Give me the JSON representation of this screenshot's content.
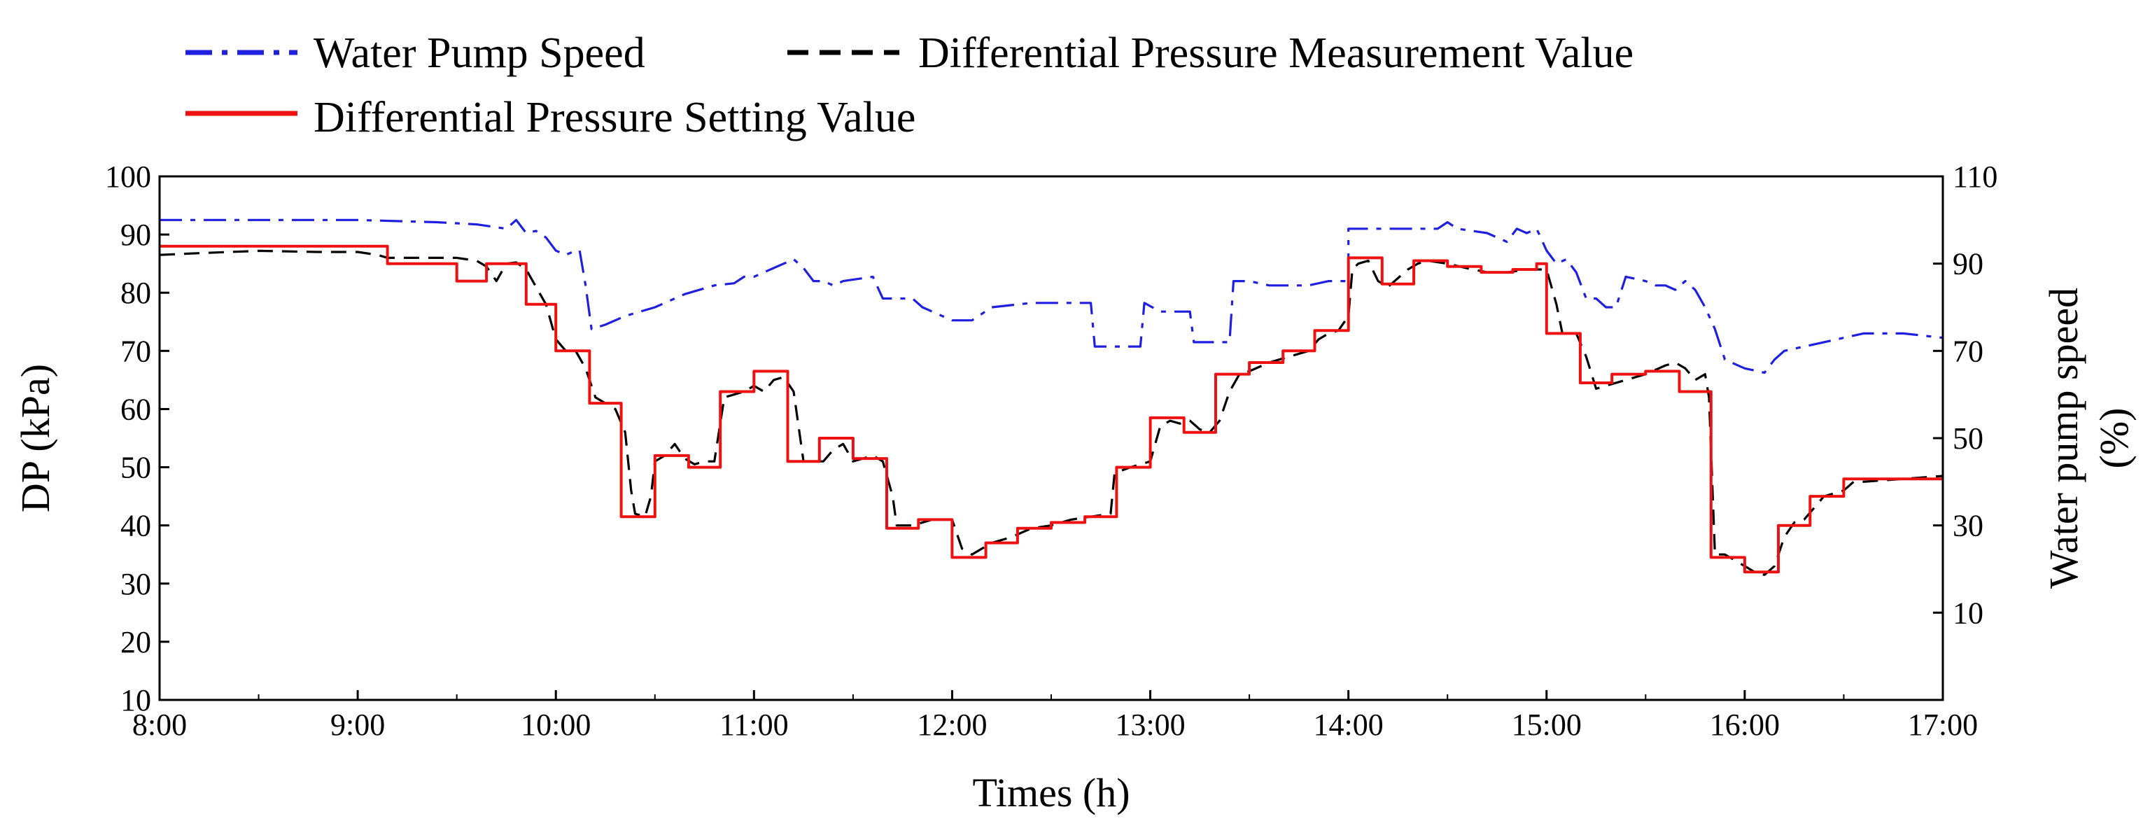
{
  "chart_data": {
    "type": "line",
    "title": "",
    "xlabel": "Times (h)",
    "ylabel": "DP (kPa)",
    "y2label_line1": "Water pump speed",
    "y2label_line2": "(%)",
    "xlim": [
      8,
      17
    ],
    "ylim": [
      10,
      100
    ],
    "y2lim": [
      -10,
      110
    ],
    "x_ticks": [
      {
        "value": 8,
        "label": "8:00"
      },
      {
        "value": 9,
        "label": "9:00"
      },
      {
        "value": 10,
        "label": "10:00"
      },
      {
        "value": 11,
        "label": "11:00"
      },
      {
        "value": 12,
        "label": "12:00"
      },
      {
        "value": 13,
        "label": "13:00"
      },
      {
        "value": 14,
        "label": "14:00"
      },
      {
        "value": 15,
        "label": "15:00"
      },
      {
        "value": 16,
        "label": "16:00"
      },
      {
        "value": 17,
        "label": "17:00"
      }
    ],
    "y_ticks": [
      {
        "value": 10,
        "label": "10"
      },
      {
        "value": 20,
        "label": "20"
      },
      {
        "value": 30,
        "label": "30"
      },
      {
        "value": 40,
        "label": "40"
      },
      {
        "value": 50,
        "label": "50"
      },
      {
        "value": 60,
        "label": "60"
      },
      {
        "value": 70,
        "label": "70"
      },
      {
        "value": 80,
        "label": "80"
      },
      {
        "value": 90,
        "label": "90"
      },
      {
        "value": 100,
        "label": "100"
      }
    ],
    "y2_ticks": [
      {
        "value": 10,
        "label": "10"
      },
      {
        "value": 30,
        "label": "30"
      },
      {
        "value": 50,
        "label": "50"
      },
      {
        "value": 70,
        "label": "70"
      },
      {
        "value": 90,
        "label": "90"
      },
      {
        "value": 110,
        "label": "110"
      }
    ],
    "legend": [
      {
        "name": "Water Pump Speed",
        "color": "#1f1fe0",
        "dash": "dashdot"
      },
      {
        "name": "Differential Pressure Measurement Value",
        "color": "#000000",
        "dash": "dashed"
      },
      {
        "name": "Differential Pressure Setting Value",
        "color": "#ee1111",
        "dash": "solid"
      }
    ],
    "series": [
      {
        "name": "Water Pump Speed",
        "axis": "right",
        "color": "#1f1fe0",
        "step": false,
        "points": [
          [
            8.0,
            100
          ],
          [
            8.5,
            100
          ],
          [
            9.0,
            100
          ],
          [
            9.4,
            99.5
          ],
          [
            9.6,
            99
          ],
          [
            9.75,
            98
          ],
          [
            9.8,
            100
          ],
          [
            9.85,
            97
          ],
          [
            9.9,
            97.5
          ],
          [
            9.95,
            96
          ],
          [
            10.0,
            93
          ],
          [
            10.05,
            92
          ],
          [
            10.1,
            93
          ],
          [
            10.12,
            93
          ],
          [
            10.15,
            85
          ],
          [
            10.18,
            75
          ],
          [
            10.25,
            76
          ],
          [
            10.35,
            78
          ],
          [
            10.5,
            80
          ],
          [
            10.65,
            83
          ],
          [
            10.8,
            85
          ],
          [
            10.9,
            85.5
          ],
          [
            10.95,
            87
          ],
          [
            11.0,
            87
          ],
          [
            11.1,
            89
          ],
          [
            11.2,
            91
          ],
          [
            11.25,
            89
          ],
          [
            11.3,
            86
          ],
          [
            11.35,
            86
          ],
          [
            11.4,
            85
          ],
          [
            11.45,
            86
          ],
          [
            11.6,
            87
          ],
          [
            11.65,
            82
          ],
          [
            11.8,
            82
          ],
          [
            11.85,
            80
          ],
          [
            12.0,
            77
          ],
          [
            12.1,
            77
          ],
          [
            12.2,
            80
          ],
          [
            12.4,
            81
          ],
          [
            12.6,
            81
          ],
          [
            12.7,
            81
          ],
          [
            12.72,
            71
          ],
          [
            12.95,
            71
          ],
          [
            12.97,
            81
          ],
          [
            13.05,
            79
          ],
          [
            13.1,
            79
          ],
          [
            13.2,
            79
          ],
          [
            13.22,
            72
          ],
          [
            13.4,
            72
          ],
          [
            13.42,
            86
          ],
          [
            13.5,
            86
          ],
          [
            13.6,
            85
          ],
          [
            13.8,
            85
          ],
          [
            13.9,
            86
          ],
          [
            14.0,
            86
          ],
          [
            14.0,
            98
          ],
          [
            14.3,
            98
          ],
          [
            14.45,
            98
          ],
          [
            14.5,
            99.5
          ],
          [
            14.55,
            98
          ],
          [
            14.7,
            97
          ],
          [
            14.8,
            95
          ],
          [
            14.85,
            98
          ],
          [
            14.9,
            97
          ],
          [
            14.95,
            98
          ],
          [
            15.0,
            93
          ],
          [
            15.05,
            90
          ],
          [
            15.1,
            91
          ],
          [
            15.15,
            88
          ],
          [
            15.2,
            82
          ],
          [
            15.25,
            82
          ],
          [
            15.3,
            80
          ],
          [
            15.35,
            80
          ],
          [
            15.4,
            87
          ],
          [
            15.5,
            86
          ],
          [
            15.55,
            85
          ],
          [
            15.6,
            85
          ],
          [
            15.65,
            84
          ],
          [
            15.7,
            86
          ],
          [
            15.75,
            84
          ],
          [
            15.8,
            80
          ],
          [
            15.85,
            75
          ],
          [
            15.9,
            68
          ],
          [
            16.0,
            66
          ],
          [
            16.1,
            65
          ],
          [
            16.15,
            68
          ],
          [
            16.2,
            70
          ],
          [
            16.3,
            71
          ],
          [
            16.4,
            72
          ],
          [
            16.5,
            73
          ],
          [
            16.6,
            74
          ],
          [
            16.8,
            74
          ],
          [
            17.0,
            73
          ]
        ]
      },
      {
        "name": "Differential Pressure Measurement Value",
        "axis": "left",
        "color": "#000000",
        "step": false,
        "points": [
          [
            8.0,
            86.5
          ],
          [
            8.2,
            86.8
          ],
          [
            8.5,
            87.2
          ],
          [
            8.8,
            87
          ],
          [
            9.0,
            87
          ],
          [
            9.1,
            86.5
          ],
          [
            9.15,
            86
          ],
          [
            9.3,
            86
          ],
          [
            9.5,
            86
          ],
          [
            9.6,
            85.5
          ],
          [
            9.65,
            84.5
          ],
          [
            9.7,
            82
          ],
          [
            9.75,
            85
          ],
          [
            9.8,
            85.2
          ],
          [
            9.85,
            84
          ],
          [
            9.9,
            81
          ],
          [
            9.95,
            78
          ],
          [
            10.0,
            72
          ],
          [
            10.05,
            70
          ],
          [
            10.1,
            70
          ],
          [
            10.15,
            67
          ],
          [
            10.2,
            62
          ],
          [
            10.25,
            61
          ],
          [
            10.3,
            60
          ],
          [
            10.35,
            56
          ],
          [
            10.38,
            46
          ],
          [
            10.4,
            42
          ],
          [
            10.45,
            41.5
          ],
          [
            10.48,
            45
          ],
          [
            10.5,
            51
          ],
          [
            10.55,
            52
          ],
          [
            10.6,
            54
          ],
          [
            10.65,
            51.5
          ],
          [
            10.7,
            50.5
          ],
          [
            10.75,
            51
          ],
          [
            10.8,
            51
          ],
          [
            10.85,
            62
          ],
          [
            10.95,
            63
          ],
          [
            11.0,
            64
          ],
          [
            11.05,
            63
          ],
          [
            11.1,
            65
          ],
          [
            11.15,
            65.5
          ],
          [
            11.2,
            63
          ],
          [
            11.25,
            51
          ],
          [
            11.35,
            51
          ],
          [
            11.4,
            53
          ],
          [
            11.45,
            54
          ],
          [
            11.5,
            51
          ],
          [
            11.55,
            51.5
          ],
          [
            11.6,
            52
          ],
          [
            11.65,
            51
          ],
          [
            11.7,
            45
          ],
          [
            11.72,
            40
          ],
          [
            11.8,
            40
          ],
          [
            11.9,
            41
          ],
          [
            12.0,
            41
          ],
          [
            12.05,
            36
          ],
          [
            12.1,
            35
          ],
          [
            12.15,
            36
          ],
          [
            12.2,
            37
          ],
          [
            12.3,
            38
          ],
          [
            12.4,
            39.5
          ],
          [
            12.5,
            40
          ],
          [
            12.6,
            41
          ],
          [
            12.7,
            41.5
          ],
          [
            12.8,
            42
          ],
          [
            12.82,
            49
          ],
          [
            12.9,
            50
          ],
          [
            12.95,
            50.5
          ],
          [
            13.0,
            51
          ],
          [
            13.05,
            57
          ],
          [
            13.1,
            58
          ],
          [
            13.15,
            57.5
          ],
          [
            13.2,
            58
          ],
          [
            13.25,
            56.5
          ],
          [
            13.3,
            56
          ],
          [
            13.35,
            58
          ],
          [
            13.4,
            63
          ],
          [
            13.45,
            66
          ],
          [
            13.5,
            66.5
          ],
          [
            13.6,
            68
          ],
          [
            13.7,
            69
          ],
          [
            13.8,
            70
          ],
          [
            13.85,
            72
          ],
          [
            13.9,
            73
          ],
          [
            13.95,
            73.5
          ],
          [
            14.0,
            76
          ],
          [
            14.02,
            84
          ],
          [
            14.05,
            85
          ],
          [
            14.1,
            85.5
          ],
          [
            14.15,
            82
          ],
          [
            14.2,
            81
          ],
          [
            14.25,
            82.5
          ],
          [
            14.3,
            84
          ],
          [
            14.35,
            85
          ],
          [
            14.4,
            85.5
          ],
          [
            14.5,
            85
          ],
          [
            14.6,
            84.2
          ],
          [
            14.7,
            83.5
          ],
          [
            14.8,
            83.5
          ],
          [
            14.9,
            84
          ],
          [
            15.0,
            84
          ],
          [
            15.05,
            78
          ],
          [
            15.08,
            73
          ],
          [
            15.15,
            73
          ],
          [
            15.2,
            69
          ],
          [
            15.25,
            63.5
          ],
          [
            15.3,
            64
          ],
          [
            15.4,
            65
          ],
          [
            15.5,
            66
          ],
          [
            15.6,
            67.5
          ],
          [
            15.65,
            68
          ],
          [
            15.7,
            67
          ],
          [
            15.75,
            65
          ],
          [
            15.8,
            66
          ],
          [
            15.82,
            62
          ],
          [
            15.85,
            35
          ],
          [
            15.9,
            35
          ],
          [
            16.0,
            33
          ],
          [
            16.05,
            32
          ],
          [
            16.1,
            31.5
          ],
          [
            16.15,
            33
          ],
          [
            16.2,
            38
          ],
          [
            16.25,
            40.5
          ],
          [
            16.3,
            41
          ],
          [
            16.35,
            43
          ],
          [
            16.4,
            45
          ],
          [
            16.5,
            46
          ],
          [
            16.55,
            47.5
          ],
          [
            16.6,
            47.5
          ],
          [
            16.8,
            48
          ],
          [
            17.0,
            48.5
          ]
        ]
      },
      {
        "name": "Differential Pressure Setting Value",
        "axis": "left",
        "color": "#ee1111",
        "step": true,
        "points": [
          [
            8.0,
            88
          ],
          [
            9.15,
            85
          ],
          [
            9.5,
            82
          ],
          [
            9.65,
            85
          ],
          [
            9.85,
            78
          ],
          [
            10.0,
            70
          ],
          [
            10.17,
            61
          ],
          [
            10.33,
            41.5
          ],
          [
            10.5,
            52
          ],
          [
            10.67,
            50
          ],
          [
            10.83,
            63
          ],
          [
            11.0,
            66.5
          ],
          [
            11.17,
            51
          ],
          [
            11.33,
            55
          ],
          [
            11.5,
            51.5
          ],
          [
            11.67,
            39.5
          ],
          [
            11.83,
            41
          ],
          [
            12.0,
            34.5
          ],
          [
            12.17,
            37
          ],
          [
            12.33,
            39.5
          ],
          [
            12.5,
            40.5
          ],
          [
            12.67,
            41.5
          ],
          [
            12.83,
            50
          ],
          [
            13.0,
            58.5
          ],
          [
            13.17,
            56
          ],
          [
            13.33,
            66
          ],
          [
            13.5,
            68
          ],
          [
            13.67,
            70
          ],
          [
            13.83,
            73.5
          ],
          [
            14.0,
            86
          ],
          [
            14.17,
            81.5
          ],
          [
            14.33,
            85.5
          ],
          [
            14.5,
            84.5
          ],
          [
            14.67,
            83.5
          ],
          [
            14.83,
            84
          ],
          [
            14.95,
            85
          ],
          [
            15.0,
            73
          ],
          [
            15.17,
            64.5
          ],
          [
            15.33,
            66
          ],
          [
            15.5,
            66.5
          ],
          [
            15.67,
            63
          ],
          [
            15.83,
            34.5
          ],
          [
            16.0,
            32
          ],
          [
            16.17,
            40
          ],
          [
            16.33,
            45
          ],
          [
            16.5,
            48
          ],
          [
            17.0,
            48
          ]
        ]
      }
    ]
  }
}
